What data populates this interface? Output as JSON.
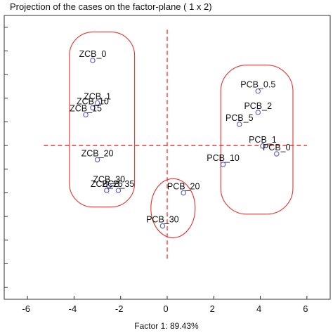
{
  "chart_data": {
    "type": "scatter",
    "title": "Projection of the cases on the factor-plane (  1 x   2)",
    "xlabel": "Factor 1: 89.43%",
    "ylabel": "",
    "xlim": [
      -7,
      7
    ],
    "ylim": [
      -6.5,
      5.5
    ],
    "xticks": [
      -6,
      -4,
      -2,
      0,
      2,
      4,
      6
    ],
    "x_tick_labels": [
      "-6",
      "-4",
      "-2",
      "0",
      "2",
      "4",
      "6"
    ],
    "grid": false,
    "reference_lines": {
      "x": 0,
      "y": 0,
      "style": "dashed",
      "color": "#e8322c"
    },
    "marker_color": "#4b4bc8",
    "group_outline_color": "#e8322c",
    "points": [
      {
        "label": "ZCB_0",
        "x": -3.2,
        "y": 3.6
      },
      {
        "label": "ZCB_1",
        "x": -3.0,
        "y": 1.8
      },
      {
        "label": "ZCB_10",
        "x": -3.2,
        "y": 1.6
      },
      {
        "label": "ZCB_15",
        "x": -3.5,
        "y": 1.3
      },
      {
        "label": "ZCB_20",
        "x": -3.0,
        "y": -0.6
      },
      {
        "label": "ZCB_30",
        "x": -2.5,
        "y": -1.7
      },
      {
        "label": "ZCB_35",
        "x": -2.1,
        "y": -1.9
      },
      {
        "label": "ZCB_25",
        "x": -2.6,
        "y": -1.9
      },
      {
        "label": "PCB_0.5",
        "x": 3.9,
        "y": 2.3
      },
      {
        "label": "PCB_2",
        "x": 3.9,
        "y": 1.4
      },
      {
        "label": "PCB_5",
        "x": 3.1,
        "y": 0.9
      },
      {
        "label": "PCB_1",
        "x": 4.1,
        "y": -0.02
      },
      {
        "label": "PCB_0",
        "x": 4.7,
        "y": -0.35
      },
      {
        "label": "PCB_10",
        "x": 2.4,
        "y": -0.8
      },
      {
        "label": "PCB_20",
        "x": 0.7,
        "y": -2.0
      },
      {
        "label": "PCB_30",
        "x": -0.2,
        "y": -3.4
      }
    ],
    "groups": [
      {
        "x_range": [
          -4.2,
          -1.4
        ],
        "y_range": [
          -2.6,
          4.8
        ]
      },
      {
        "x_range": [
          2.3,
          5.4
        ],
        "y_range": [
          -2.9,
          3.4
        ]
      },
      {
        "x_range": [
          -0.7,
          1.2
        ],
        "y_range": [
          -3.9,
          -1.4
        ]
      }
    ]
  }
}
